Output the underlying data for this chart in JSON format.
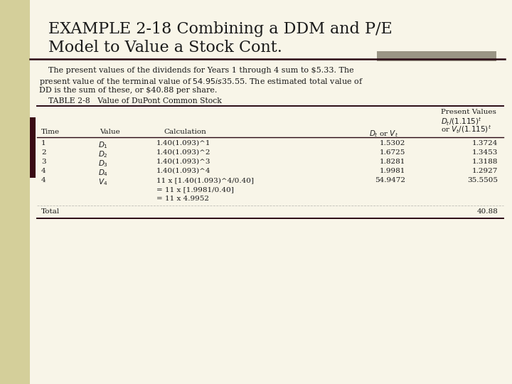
{
  "title_line1": "EXAMPLE 2-18 Combining a DDM and P/E",
  "title_line2": "Model to Value a Stock Cont.",
  "bg_left_color": "#d4cf9a",
  "bg_right_color": "#e8e4c0",
  "content_bg": "#f8f5e8",
  "title_color": "#1a1a1a",
  "body_text_line1": "The present values of the dividends for Years 1 through 4 sum to $5.33. The",
  "body_text_line2": "present value of the terminal value of $54.95 is $35.55. The estimated total value of",
  "body_text_line3": "DD is the sum of these, or $40.88 per share.",
  "table_caption": "TABLE 2-8   Value of DuPont Common Stock",
  "accent_bar_color": "#9a9585",
  "dark_rule_color": "#2a0a14",
  "left_bar_color": "#3a0a14",
  "font_size_title": 16,
  "font_size_body": 8,
  "font_size_table": 7.5,
  "col_headers_line1": [
    "Time",
    "Value",
    "Calculation",
    "D_t or V_t",
    "Present Values"
  ],
  "col_headers_line2": [
    "",
    "",
    "",
    "",
    "D_t/(1.115)^t"
  ],
  "col_headers_line3": [
    "",
    "",
    "",
    "",
    "or V_t/(1.115)^t"
  ],
  "rows": [
    [
      "1",
      "D_1",
      "1.40(1.093)^1",
      "1.5302",
      "1.3724"
    ],
    [
      "2",
      "D_2",
      "1.40(1.093)^2",
      "1.6725",
      "1.3453"
    ],
    [
      "3",
      "D_3",
      "1.40(1.093)^3",
      "1.8281",
      "1.3188"
    ],
    [
      "4",
      "D_4",
      "1.40(1.093)^4",
      "1.9981",
      "1.2927"
    ],
    [
      "4",
      "V_4",
      "11 x [1.40(1.093)^4/0.40]",
      "54.9472",
      "35.5505"
    ],
    [
      "",
      "",
      "= 11 x [1.9981/0.40]",
      "",
      ""
    ],
    [
      "",
      "",
      "= 11 x 4.9952",
      "",
      ""
    ]
  ],
  "total_label": "Total",
  "total_value": "40.88"
}
